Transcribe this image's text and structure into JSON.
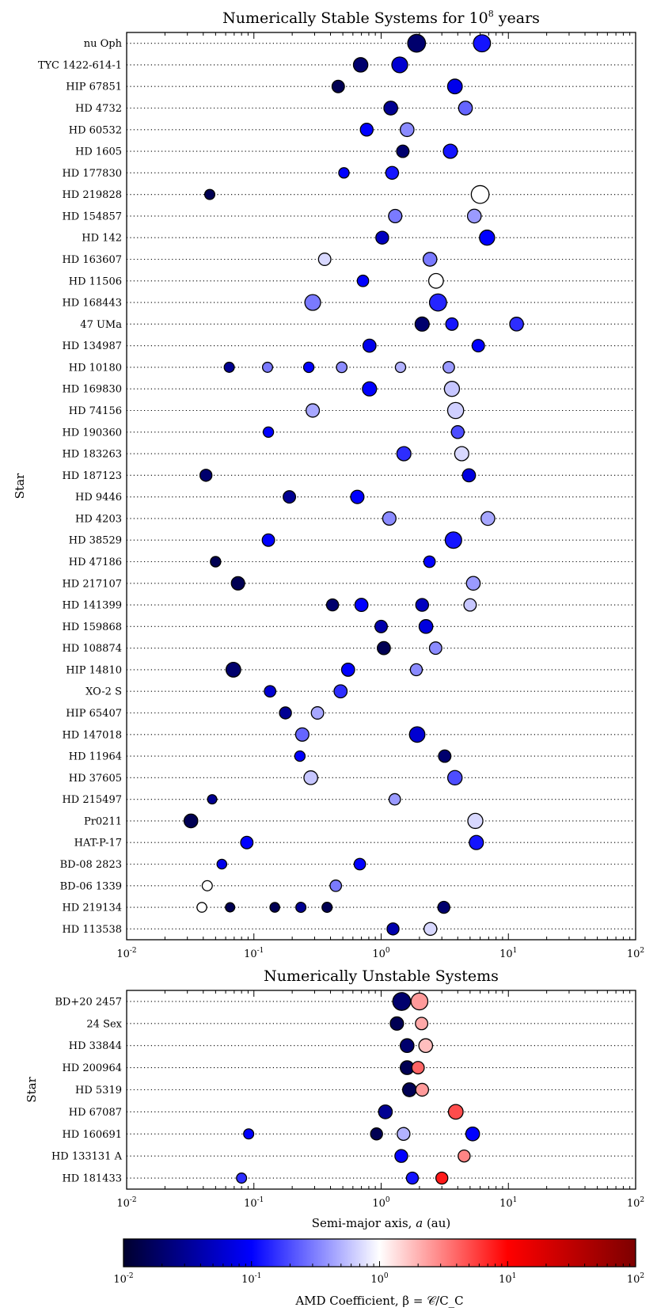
{
  "chart_data": [
    {
      "type": "scatter",
      "title": "Numerically Stable Systems for 10^8 years",
      "ylabel": "Star",
      "xlabel": "",
      "xscale": "log",
      "xlim": [
        0.01,
        100
      ],
      "x_ticks": [
        "10^-2",
        "10^-1",
        "10^0",
        "10^1",
        "10^2"
      ],
      "grid": "dotted horizontal row lines",
      "points_format": "[semi-major axis (au), marker size 0-1, AMD coefficient beta]",
      "rows": [
        {
          "star": "nu Oph",
          "points": [
            [
              1.9,
              0.85,
              0.02
            ],
            [
              6.2,
              0.8,
              0.12
            ]
          ]
        },
        {
          "star": "TYC 1422-614-1",
          "points": [
            [
              0.69,
              0.6,
              0.02
            ],
            [
              1.4,
              0.7,
              0.06
            ]
          ]
        },
        {
          "star": "HIP 67851",
          "points": [
            [
              0.46,
              0.45,
              0.015
            ],
            [
              3.8,
              0.62,
              0.08
            ]
          ]
        },
        {
          "star": "HD 4732",
          "points": [
            [
              1.19,
              0.55,
              0.03
            ],
            [
              4.6,
              0.55,
              0.25
            ]
          ]
        },
        {
          "star": "HD 60532",
          "points": [
            [
              0.77,
              0.48,
              0.1
            ],
            [
              1.6,
              0.55,
              0.35
            ]
          ]
        },
        {
          "star": "HD 1605",
          "points": [
            [
              1.48,
              0.45,
              0.02
            ],
            [
              3.5,
              0.58,
              0.12
            ]
          ]
        },
        {
          "star": "HD 177830",
          "points": [
            [
              0.51,
              0.3,
              0.1
            ],
            [
              1.22,
              0.48,
              0.12
            ]
          ]
        },
        {
          "star": "HD 219828",
          "points": [
            [
              0.045,
              0.28,
              0.015
            ],
            [
              6.0,
              0.85,
              1.0
            ]
          ]
        },
        {
          "star": "HD 154857",
          "points": [
            [
              1.29,
              0.52,
              0.3
            ],
            [
              5.4,
              0.55,
              0.4
            ]
          ]
        },
        {
          "star": "HD 142",
          "points": [
            [
              1.02,
              0.48,
              0.05
            ],
            [
              6.8,
              0.65,
              0.1
            ]
          ]
        },
        {
          "star": "HD 163607",
          "points": [
            [
              0.36,
              0.45,
              0.7
            ],
            [
              2.42,
              0.55,
              0.3
            ]
          ]
        },
        {
          "star": "HD 11506",
          "points": [
            [
              0.72,
              0.38,
              0.1
            ],
            [
              2.7,
              0.62,
              1.0
            ]
          ]
        },
        {
          "star": "HD 168443",
          "points": [
            [
              0.29,
              0.7,
              0.3
            ],
            [
              2.8,
              0.8,
              0.14
            ]
          ]
        },
        {
          "star": "47 UMa",
          "points": [
            [
              2.1,
              0.58,
              0.02
            ],
            [
              3.6,
              0.45,
              0.12
            ],
            [
              11.6,
              0.55,
              0.15
            ]
          ]
        },
        {
          "star": "HD 134987",
          "points": [
            [
              0.81,
              0.5,
              0.08
            ],
            [
              5.8,
              0.45,
              0.1
            ]
          ]
        },
        {
          "star": "HD 10180",
          "points": [
            [
              0.064,
              0.28,
              0.03
            ],
            [
              0.128,
              0.28,
              0.3
            ],
            [
              0.27,
              0.3,
              0.1
            ],
            [
              0.49,
              0.32,
              0.35
            ],
            [
              1.42,
              0.3,
              0.5
            ],
            [
              3.4,
              0.38,
              0.4
            ]
          ]
        },
        {
          "star": "HD 169830",
          "points": [
            [
              0.81,
              0.58,
              0.1
            ],
            [
              3.6,
              0.65,
              0.6
            ]
          ]
        },
        {
          "star": "HD 74156",
          "points": [
            [
              0.29,
              0.52,
              0.45
            ],
            [
              3.85,
              0.72,
              0.65
            ]
          ]
        },
        {
          "star": "HD 190360",
          "points": [
            [
              0.13,
              0.3,
              0.1
            ],
            [
              4.0,
              0.48,
              0.2
            ]
          ]
        },
        {
          "star": "HD 183263",
          "points": [
            [
              1.51,
              0.58,
              0.15
            ],
            [
              4.3,
              0.58,
              0.7
            ]
          ]
        },
        {
          "star": "HD 187123",
          "points": [
            [
              0.042,
              0.42,
              0.02
            ],
            [
              4.9,
              0.5,
              0.07
            ]
          ]
        },
        {
          "star": "HD 9446",
          "points": [
            [
              0.19,
              0.45,
              0.03
            ],
            [
              0.65,
              0.52,
              0.1
            ]
          ]
        },
        {
          "star": "HD 4203",
          "points": [
            [
              1.16,
              0.52,
              0.35
            ],
            [
              6.9,
              0.55,
              0.45
            ]
          ]
        },
        {
          "star": "HD 38529",
          "points": [
            [
              0.13,
              0.45,
              0.1
            ],
            [
              3.7,
              0.75,
              0.12
            ]
          ]
        },
        {
          "star": "HD 47186",
          "points": [
            [
              0.05,
              0.3,
              0.015
            ],
            [
              2.4,
              0.38,
              0.1
            ]
          ]
        },
        {
          "star": "HD 217107",
          "points": [
            [
              0.075,
              0.52,
              0.015
            ],
            [
              5.3,
              0.55,
              0.4
            ]
          ]
        },
        {
          "star": "HD 141399",
          "points": [
            [
              0.415,
              0.42,
              0.02
            ],
            [
              0.7,
              0.5,
              0.1
            ],
            [
              2.1,
              0.48,
              0.05
            ],
            [
              5.0,
              0.45,
              0.6
            ]
          ]
        },
        {
          "star": "HD 159868",
          "points": [
            [
              1.0,
              0.45,
              0.04
            ],
            [
              2.25,
              0.55,
              0.07
            ]
          ]
        },
        {
          "star": "HD 108874",
          "points": [
            [
              1.05,
              0.5,
              0.015
            ],
            [
              2.68,
              0.45,
              0.35
            ]
          ]
        },
        {
          "star": "HIP 14810",
          "points": [
            [
              0.069,
              0.62,
              0.02
            ],
            [
              0.55,
              0.5,
              0.1
            ],
            [
              1.89,
              0.42,
              0.35
            ]
          ]
        },
        {
          "star": "XO-2 S",
          "points": [
            [
              0.134,
              0.38,
              0.06
            ],
            [
              0.48,
              0.5,
              0.15
            ]
          ]
        },
        {
          "star": "HIP 65407",
          "points": [
            [
              0.177,
              0.42,
              0.03
            ],
            [
              0.316,
              0.45,
              0.45
            ]
          ]
        },
        {
          "star": "HD 147018",
          "points": [
            [
              0.24,
              0.52,
              0.25
            ],
            [
              1.92,
              0.68,
              0.06
            ]
          ]
        },
        {
          "star": "HD 11964",
          "points": [
            [
              0.23,
              0.3,
              0.1
            ],
            [
              3.16,
              0.45,
              0.02
            ]
          ]
        },
        {
          "star": "HD 37605",
          "points": [
            [
              0.28,
              0.55,
              0.6
            ],
            [
              3.8,
              0.6,
              0.2
            ]
          ]
        },
        {
          "star": "HD 215497",
          "points": [
            [
              0.047,
              0.22,
              0.03
            ],
            [
              1.28,
              0.38,
              0.4
            ]
          ]
        },
        {
          "star": "Pr0211",
          "points": [
            [
              0.032,
              0.55,
              0.015
            ],
            [
              5.5,
              0.65,
              0.7
            ]
          ]
        },
        {
          "star": "HAT-P-17",
          "points": [
            [
              0.088,
              0.45,
              0.1
            ],
            [
              5.6,
              0.58,
              0.12
            ]
          ]
        },
        {
          "star": "BD-08 2823",
          "points": [
            [
              0.056,
              0.25,
              0.08
            ],
            [
              0.68,
              0.38,
              0.1
            ]
          ]
        },
        {
          "star": "BD-06 1339",
          "points": [
            [
              0.043,
              0.28,
              1.0
            ],
            [
              0.44,
              0.38,
              0.3
            ]
          ]
        },
        {
          "star": "HD 219134",
          "points": [
            [
              0.039,
              0.25,
              1.0
            ],
            [
              0.065,
              0.22,
              0.015
            ],
            [
              0.146,
              0.25,
              0.015
            ],
            [
              0.234,
              0.28,
              0.03
            ],
            [
              0.376,
              0.28,
              0.015
            ],
            [
              3.11,
              0.42,
              0.02
            ]
          ]
        },
        {
          "star": "HD 113538",
          "points": [
            [
              1.24,
              0.42,
              0.04
            ],
            [
              2.44,
              0.48,
              0.7
            ]
          ]
        }
      ]
    },
    {
      "type": "scatter",
      "title": "Numerically Unstable Systems",
      "ylabel": "Star",
      "xlabel": "Semi-major axis, a (au)",
      "xscale": "log",
      "xlim": [
        0.01,
        100
      ],
      "x_ticks": [
        "10^-2",
        "10^-1",
        "10^0",
        "10^1",
        "10^2"
      ],
      "grid": "dotted horizontal row lines",
      "points_format": "[semi-major axis (au), marker size 0-1, AMD coefficient beta]",
      "rows": [
        {
          "star": "BD+20 2457",
          "points": [
            [
              1.45,
              0.85,
              0.02
            ],
            [
              2.0,
              0.78,
              2.5
            ]
          ]
        },
        {
          "star": "24 Sex",
          "points": [
            [
              1.33,
              0.52,
              0.015
            ],
            [
              2.08,
              0.45,
              2.2
            ]
          ]
        },
        {
          "star": "HD 33844",
          "points": [
            [
              1.6,
              0.55,
              0.02
            ],
            [
              2.24,
              0.55,
              1.8
            ]
          ]
        },
        {
          "star": "HD 200964",
          "points": [
            [
              1.6,
              0.55,
              0.015
            ],
            [
              1.95,
              0.45,
              4.0
            ]
          ]
        },
        {
          "star": "HD 5319",
          "points": [
            [
              1.67,
              0.55,
              0.015
            ],
            [
              2.1,
              0.48,
              2.5
            ]
          ]
        },
        {
          "star": "HD 67087",
          "points": [
            [
              1.08,
              0.55,
              0.03
            ],
            [
              3.86,
              0.62,
              5.0
            ]
          ]
        },
        {
          "star": "HD 160691",
          "points": [
            [
              0.091,
              0.28,
              0.1
            ],
            [
              0.92,
              0.42,
              0.015
            ],
            [
              1.5,
              0.48,
              0.5
            ],
            [
              5.24,
              0.55,
              0.1
            ]
          ]
        },
        {
          "star": "HD 133131 A",
          "points": [
            [
              1.44,
              0.48,
              0.1
            ],
            [
              4.49,
              0.42,
              3.0
            ]
          ]
        },
        {
          "star": "HD 181433",
          "points": [
            [
              0.08,
              0.28,
              0.15
            ],
            [
              1.76,
              0.42,
              0.12
            ],
            [
              3.0,
              0.42,
              8.0
            ]
          ]
        }
      ]
    },
    {
      "type": "colorbar",
      "label": "AMD Coefficient, β = 𝒞/C_C",
      "scale": "log",
      "range": [
        0.01,
        100
      ],
      "ticks": [
        "10^-2",
        "10^-1",
        "10^0",
        "10^1",
        "10^2"
      ],
      "colormap": [
        "#00002e",
        "#0000ff",
        "#ffffff",
        "#ff0000",
        "#7d0000"
      ]
    }
  ]
}
